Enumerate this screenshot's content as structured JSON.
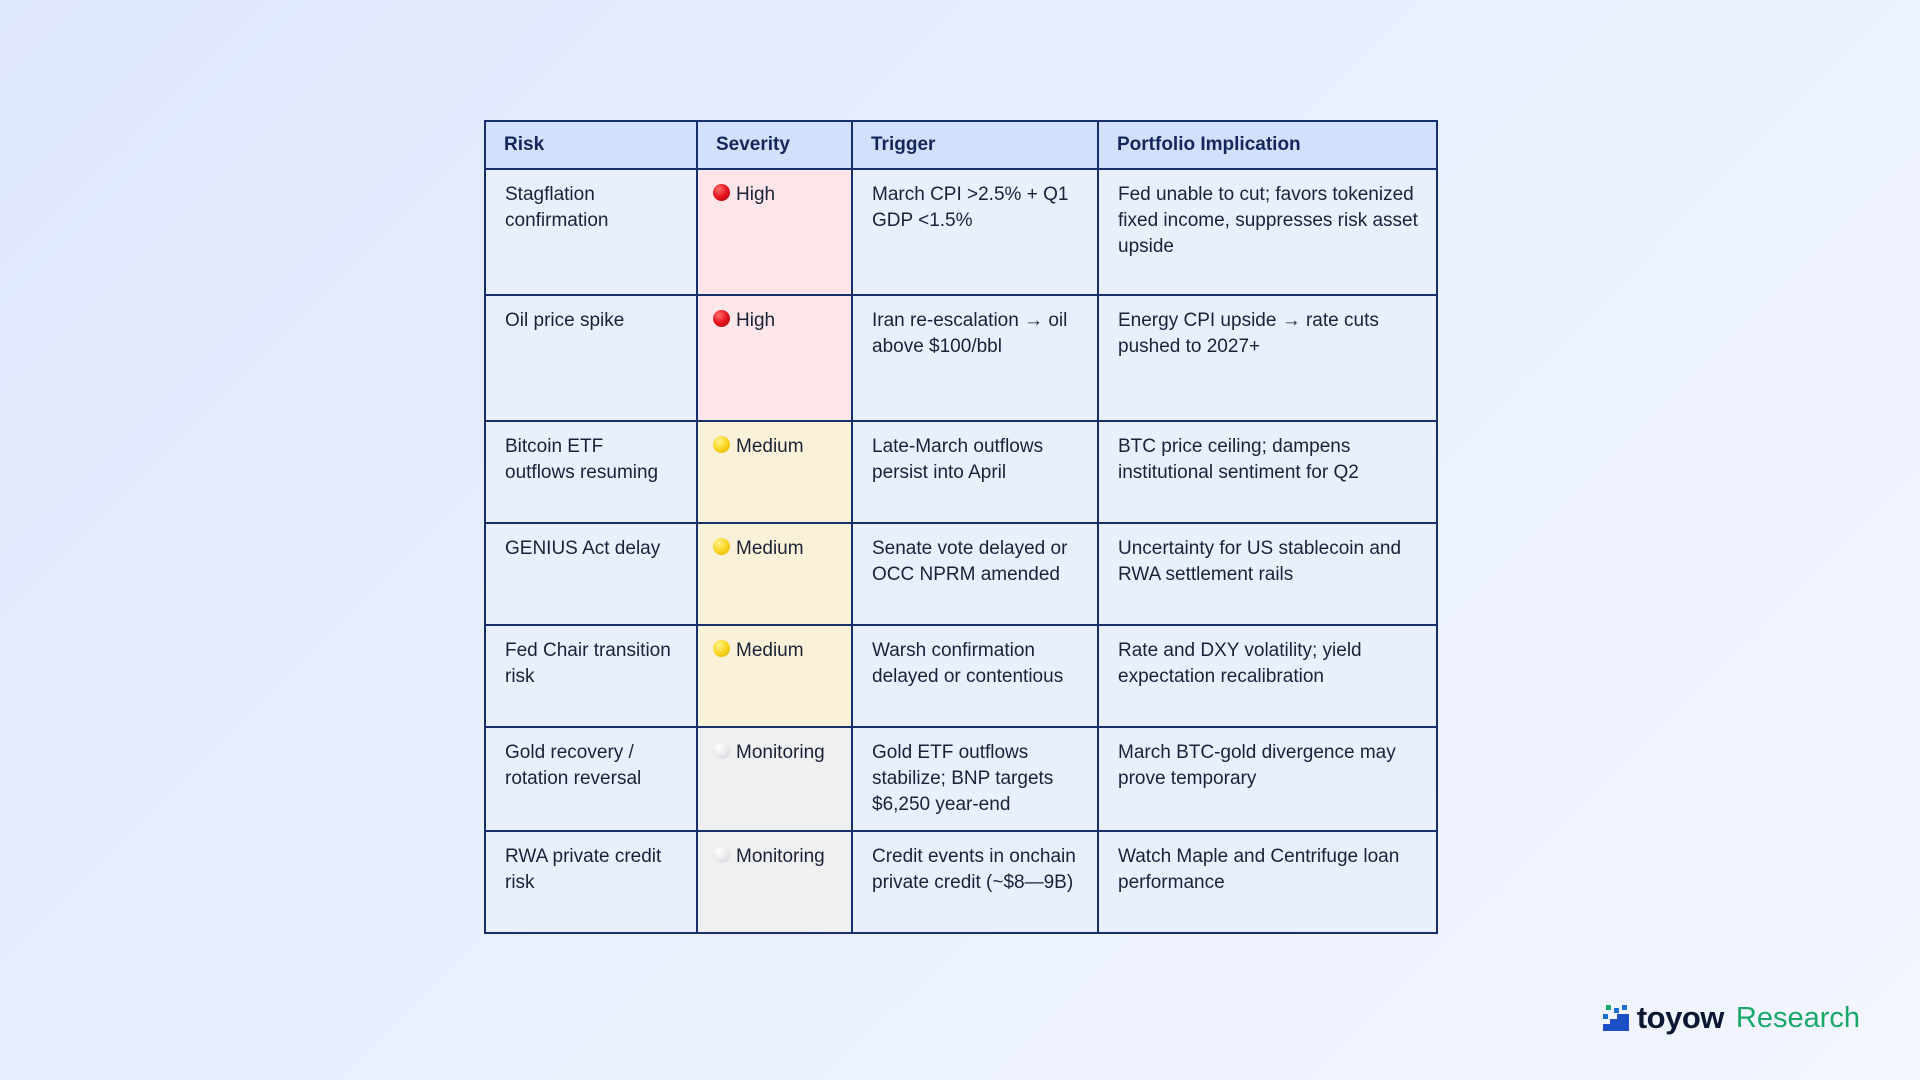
{
  "table": {
    "headers": [
      "Risk",
      "Severity",
      "Trigger",
      "Portfolio Implication"
    ],
    "rows": [
      {
        "risk": "Stagflation confirmation",
        "severity": "High",
        "level": "high",
        "trigger": "March CPI >2.5% + Q1 GDP <1.5%",
        "implication": "Fed unable to cut; favors tokenized fixed income, suppresses risk asset upside"
      },
      {
        "risk": "Oil price spike",
        "severity": "High",
        "level": "high",
        "trigger": "Iran re-escalation → oil above $100/bbl",
        "implication": "Energy CPI upside → rate cuts pushed to 2027+"
      },
      {
        "risk": "Bitcoin ETF outflows resuming",
        "severity": "Medium",
        "level": "medium",
        "trigger": "Late-March outflows persist into April",
        "implication": "BTC price ceiling; dampens institutional sentiment for Q2"
      },
      {
        "risk": "GENIUS Act delay",
        "severity": "Medium",
        "level": "medium",
        "trigger": "Senate vote delayed or OCC NPRM amended",
        "implication": "Uncertainty for US stablecoin and RWA settlement rails"
      },
      {
        "risk": "Fed Chair transition risk",
        "severity": "Medium",
        "level": "medium",
        "trigger": "Warsh confirmation delayed or contentious",
        "implication": "Rate and DXY volatility; yield expectation recalibration"
      },
      {
        "risk": "Gold recovery / rotation reversal",
        "severity": "Monitoring",
        "level": "monitoring",
        "trigger": "Gold ETF outflows stabilize; BNP targets $6,250 year-end",
        "implication": "March BTC-gold divergence may prove temporary"
      },
      {
        "risk": "RWA private credit risk",
        "severity": "Monitoring",
        "level": "monitoring",
        "trigger": "Credit events in onchain private credit (~$8—9B)",
        "implication": "Watch Maple and Centrifuge loan performance"
      }
    ]
  },
  "severity_colors": {
    "high": "#fde6ea",
    "medium": "#faf2d8",
    "monitoring": "#f0f0f2"
  },
  "brand": {
    "name": "toyow",
    "tagline": "Research",
    "icon": "toyow-logo-icon"
  }
}
